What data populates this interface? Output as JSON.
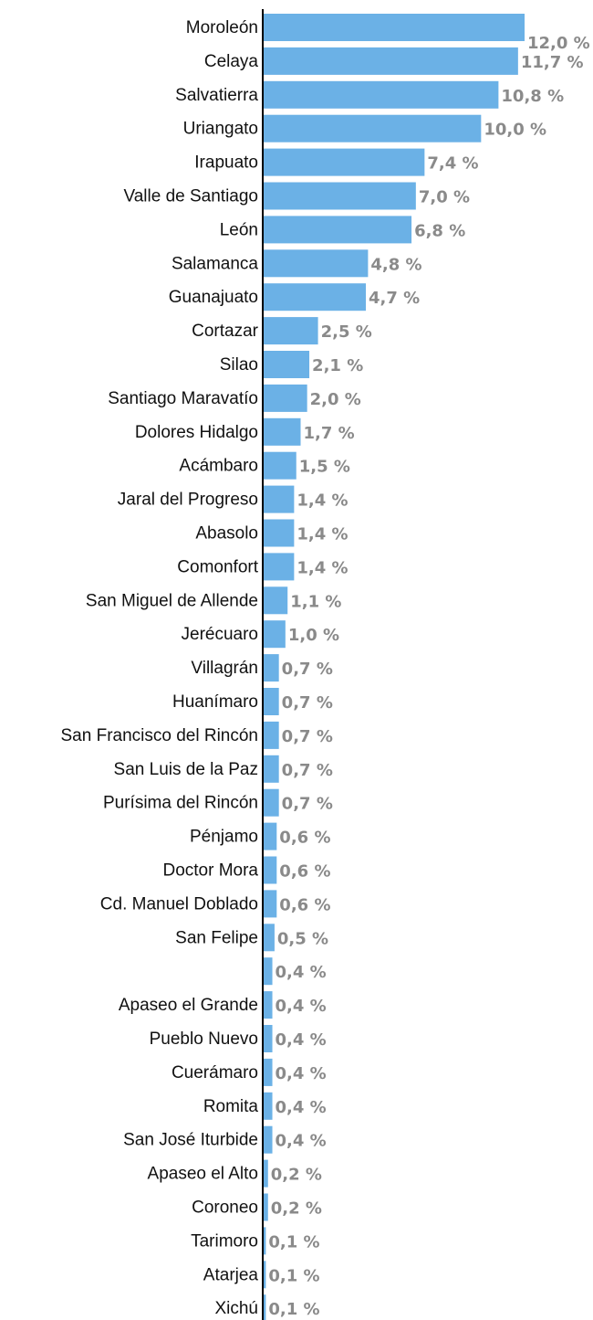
{
  "chart_data": {
    "type": "bar",
    "orientation": "horizontal",
    "color": "#6bb1e6",
    "categories": [
      "Moroleón",
      "Celaya",
      "Salvatierra",
      "Uriangato",
      "Irapuato",
      "Valle de Santiago",
      "León",
      "Salamanca",
      "Guanajuato",
      "Cortazar",
      "Silao",
      "Santiago Maravatío",
      "Dolores Hidalgo",
      "Acámbaro",
      "Jaral del Progreso",
      "Abasolo",
      "Comonfort",
      "San Miguel de Allende",
      "Jerécuaro",
      "Villagrán",
      "Huanímaro",
      "San Francisco del Rincón",
      "San Luis de la Paz",
      "Purísima del Rincón",
      "Pénjamo",
      "Doctor Mora",
      "Cd. Manuel Doblado",
      "San Felipe",
      null,
      "Apaseo el Grande",
      "Pueblo Nuevo",
      "Cuerámaro",
      "Romita",
      "San José Iturbide",
      "Apaseo el Alto",
      "Coroneo",
      "Tarimoro",
      "Atarjea",
      "Xichú"
    ],
    "values": [
      12.0,
      11.7,
      10.8,
      10.0,
      7.4,
      7.0,
      6.8,
      4.8,
      4.7,
      2.5,
      2.1,
      2.0,
      1.7,
      1.5,
      1.4,
      1.4,
      1.4,
      1.1,
      1.0,
      0.7,
      0.7,
      0.7,
      0.7,
      0.7,
      0.6,
      0.6,
      0.6,
      0.5,
      0.4,
      0.4,
      0.4,
      0.4,
      0.4,
      0.4,
      0.2,
      0.2,
      0.1,
      0.1,
      0.1
    ],
    "value_labels": [
      "12,0 %",
      "11,7 %",
      "10,8 %",
      "10,0 %",
      "7,4 %",
      "7,0 %",
      "6,8 %",
      "4,8 %",
      "4,7 %",
      "2,5 %",
      "2,1 %",
      "2,0 %",
      "1,7 %",
      "1,5 %",
      "1,4 %",
      "1,4 %",
      "1,4 %",
      "1,1 %",
      "1,0 %",
      "0,7 %",
      "0,7 %",
      "0,7 %",
      "0,7 %",
      "0,7 %",
      "0,6 %",
      "0,6 %",
      "0,6 %",
      "0,5 %",
      "0,4 %",
      "0,4 %",
      "0,4 %",
      "0,4 %",
      "0,4 %",
      "0,4 %",
      "0,2 %",
      "0,2 %",
      "0,1 %",
      "0,1 %",
      "0,1 %"
    ]
  }
}
